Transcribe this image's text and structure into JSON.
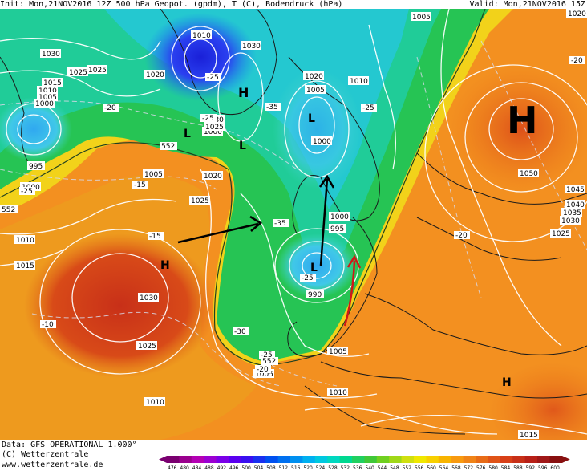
{
  "header": {
    "left": "Init: Mon,21NOV2016 12Z 500 hPa Geopot. (gpdm), T (C), Bodendruck (hPa)",
    "right": "Valid: Mon,21NOV2016 15Z"
  },
  "footer": {
    "data_line": "Data: GFS OPERATIONAL 1.000°",
    "copyright": "(C) Wetterzentrale",
    "url": "www.wetterzentrale.de"
  },
  "colorbar": {
    "ticks": [
      "476",
      "480",
      "484",
      "488",
      "492",
      "496",
      "500",
      "504",
      "508",
      "512",
      "516",
      "520",
      "524",
      "528",
      "532",
      "536",
      "540",
      "544",
      "548",
      "552",
      "556",
      "560",
      "564",
      "568",
      "572",
      "576",
      "580",
      "584",
      "588",
      "592",
      "596",
      "600"
    ],
    "colors": [
      "#7a0070",
      "#9a008e",
      "#b400b4",
      "#9b00d2",
      "#7a00e8",
      "#5a00f0",
      "#3a10f0",
      "#1a30f0",
      "#0050f0",
      "#0070f0",
      "#0090f0",
      "#00b0f0",
      "#00c8e0",
      "#00d8c0",
      "#00d890",
      "#20d060",
      "#40c838",
      "#70d020",
      "#a0d818",
      "#d0e010",
      "#f0e800",
      "#f8d000",
      "#f8b400",
      "#f89a10",
      "#f08418",
      "#e86c18",
      "#e05418",
      "#d84018",
      "#c83018",
      "#b82018",
      "#a01818",
      "#881010"
    ]
  },
  "map": {
    "isobar_labels": [
      "1030",
      "1025",
      "1015",
      "1010",
      "1005",
      "1000",
      "995",
      "1000",
      "1025",
      "1020",
      "1010",
      "1005",
      "1000",
      "1015",
      "1010",
      "1030",
      "1025",
      "1020",
      "1010",
      "1025",
      "1030",
      "1025",
      "1030",
      "1020",
      "1005",
      "1010",
      "1005",
      "1000",
      "1000",
      "995",
      "990",
      "1005",
      "1010",
      "1015",
      "1005",
      "1050",
      "1045",
      "1040",
      "1035",
      "1030",
      "1025",
      "1020",
      "1015",
      "1010",
      "1005",
      "1000"
    ],
    "temp_labels": [
      "-25",
      "-20",
      "-25",
      "-15",
      "-10",
      "-25",
      "-35",
      "-35",
      "-25",
      "-30",
      "-20",
      "-25",
      "-15",
      "-20",
      "-25",
      "-20",
      "-30",
      "-15"
    ],
    "pressure_centers": [
      {
        "letter": "H",
        "kind": "high-large"
      },
      {
        "letter": "H",
        "kind": "high"
      },
      {
        "letter": "H",
        "kind": "high"
      },
      {
        "letter": "H",
        "kind": "high"
      },
      {
        "letter": "L",
        "kind": "low"
      },
      {
        "letter": "L",
        "kind": "low"
      },
      {
        "letter": "L",
        "kind": "low"
      },
      {
        "letter": "L",
        "kind": "low"
      }
    ],
    "contour_label": "552",
    "contour_label_2": "552",
    "contour_label_3": "552"
  },
  "colors": {
    "arrow_black": "#000000",
    "arrow_red": "#d01818",
    "isobar": "#ffffff",
    "coast": "#1a1a1a"
  }
}
